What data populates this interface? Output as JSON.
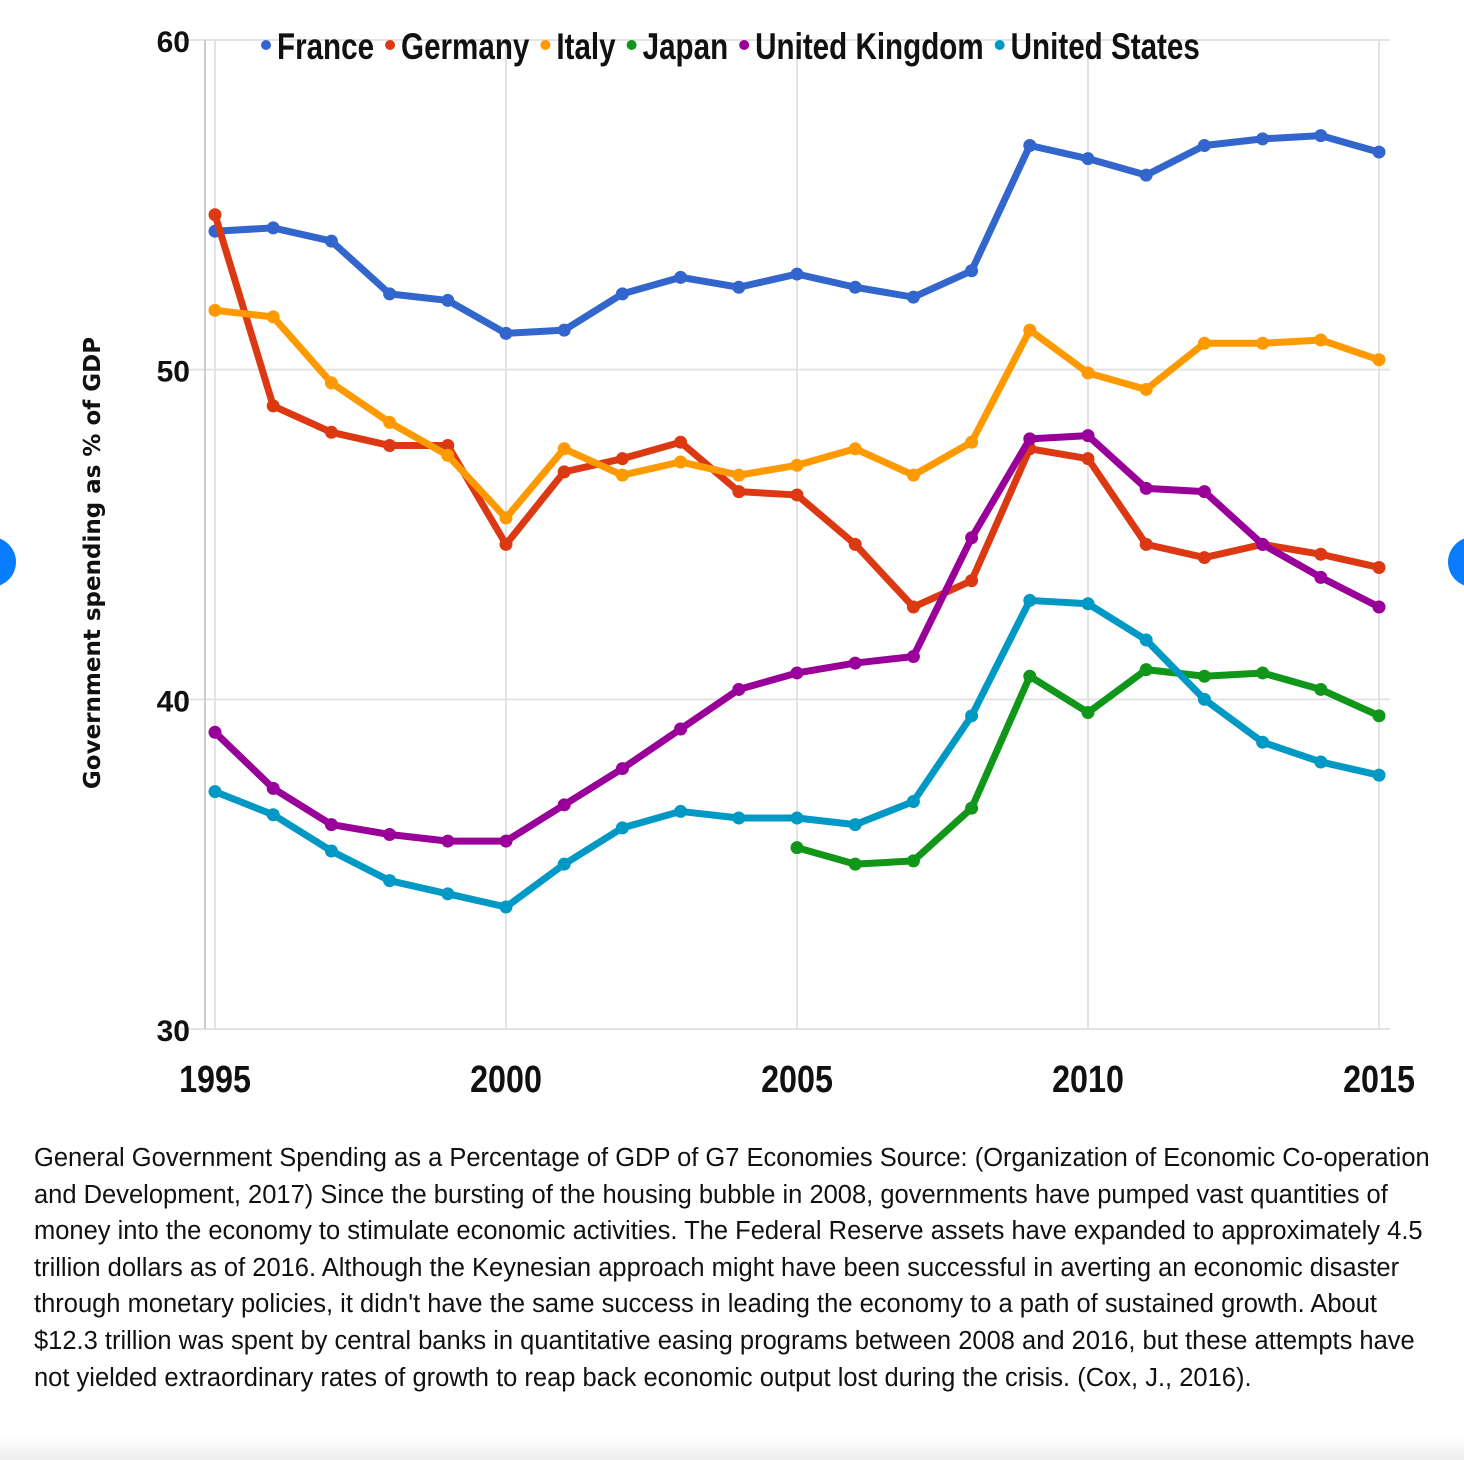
{
  "chart_data": {
    "type": "line",
    "title": "",
    "xlabel": "",
    "ylabel": "Government spending as % of GDP",
    "xlim": [
      1995,
      2015
    ],
    "ylim": [
      30,
      60
    ],
    "xticks": [
      "1995",
      "2000",
      "2005",
      "2010",
      "2015"
    ],
    "yticks": [
      "30",
      "40",
      "50",
      "60"
    ],
    "grid": true,
    "legend_position": "top",
    "x": [
      1995,
      1996,
      1997,
      1998,
      1999,
      2000,
      2001,
      2002,
      2003,
      2004,
      2005,
      2006,
      2007,
      2008,
      2009,
      2010,
      2011,
      2012,
      2013,
      2014,
      2015
    ],
    "series": [
      {
        "name": "France",
        "color": "#3366cc",
        "values": [
          54.2,
          54.3,
          53.9,
          52.3,
          52.1,
          51.1,
          51.2,
          52.3,
          52.8,
          52.5,
          52.9,
          52.5,
          52.2,
          53.0,
          56.8,
          56.4,
          55.9,
          56.8,
          57.0,
          57.1,
          56.6
        ]
      },
      {
        "name": "Germany",
        "color": "#dc3912",
        "values": [
          54.7,
          48.9,
          48.1,
          47.7,
          47.7,
          44.7,
          46.9,
          47.3,
          47.8,
          46.3,
          46.2,
          44.7,
          42.8,
          43.6,
          47.6,
          47.3,
          44.7,
          44.3,
          44.7,
          44.4,
          44.0
        ]
      },
      {
        "name": "Italy",
        "color": "#ff9900",
        "values": [
          51.8,
          51.6,
          49.6,
          48.4,
          47.4,
          45.5,
          47.6,
          46.8,
          47.2,
          46.8,
          47.1,
          47.6,
          46.8,
          47.8,
          51.2,
          49.9,
          49.4,
          50.8,
          50.8,
          50.9,
          50.3
        ]
      },
      {
        "name": "Japan",
        "color": "#109618",
        "values": [
          null,
          null,
          null,
          null,
          null,
          null,
          null,
          null,
          null,
          null,
          35.5,
          35.0,
          35.1,
          36.7,
          40.7,
          39.6,
          40.9,
          40.7,
          40.8,
          40.3,
          39.5
        ]
      },
      {
        "name": "United Kingdom",
        "color": "#990099",
        "values": [
          39.0,
          37.3,
          36.2,
          35.9,
          35.7,
          35.7,
          36.8,
          37.9,
          39.1,
          40.3,
          40.8,
          41.1,
          41.3,
          44.9,
          47.9,
          48.0,
          46.4,
          46.3,
          44.7,
          43.7,
          42.8
        ]
      },
      {
        "name": "United States",
        "color": "#0099c6",
        "values": [
          37.2,
          36.5,
          35.4,
          34.5,
          34.1,
          33.7,
          35.0,
          36.1,
          36.6,
          36.4,
          36.4,
          36.2,
          36.9,
          39.5,
          43.0,
          42.9,
          41.8,
          40.0,
          38.7,
          38.1,
          37.7
        ]
      }
    ]
  },
  "caption": "General Government Spending as a Percentage of GDP of G7 Economies Source: (Organization of Economic Co-operation and Development, 2017) Since the bursting of the housing bubble in 2008, governments have pumped vast quantities of money into the economy to stimulate economic activities. The Federal Reserve assets have expanded to approximately 4.5 trillion dollars as of 2016. Although the Keynesian approach might have been successful in averting an economic disaster through monetary policies, it didn't have the same success in leading the economy to a path of sustained growth. About $12.3 trillion was spent by central banks in quantitative easing programs between 2008 and 2016, but these attempts have not yielded extraordinary rates of growth to reap back economic output lost during the crisis. (Cox, J., 2016).",
  "nav": {
    "prev_icon": "carousel-prev",
    "next_icon": "carousel-next",
    "color": "#0a7cff"
  }
}
